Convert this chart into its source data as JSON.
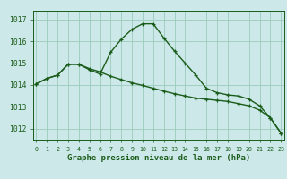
{
  "title": "Graphe pression niveau de la mer (hPa)",
  "bg_color": "#cce8e8",
  "grid_color": "#99ccbb",
  "line_color": "#1a5c1a",
  "xlim": [
    -0.3,
    23.3
  ],
  "ylim": [
    1011.5,
    1017.4
  ],
  "yticks": [
    1012,
    1013,
    1014,
    1015,
    1016,
    1017
  ],
  "xticks": [
    0,
    1,
    2,
    3,
    4,
    5,
    6,
    7,
    8,
    9,
    10,
    11,
    12,
    13,
    14,
    15,
    16,
    17,
    18,
    19,
    20,
    21,
    22,
    23
  ],
  "series1_x": [
    0,
    1,
    2,
    3,
    4,
    5,
    6,
    7,
    8,
    9,
    10,
    11,
    12,
    13,
    14,
    15,
    16,
    17,
    18,
    19,
    20,
    21,
    22,
    23
  ],
  "series1_y": [
    1014.05,
    1014.3,
    1014.45,
    1014.95,
    1014.95,
    1014.7,
    1014.5,
    1015.5,
    1016.1,
    1016.55,
    1016.8,
    1016.8,
    1016.15,
    1015.55,
    1015.0,
    1014.45,
    1013.85,
    1013.65,
    1013.55,
    1013.5,
    1013.35,
    1013.05,
    1012.5,
    1011.8
  ],
  "series2_x": [
    0,
    1,
    2,
    3,
    4,
    5,
    6,
    7,
    8,
    9,
    10,
    11,
    12,
    13,
    14,
    15,
    16,
    17,
    18,
    19,
    20,
    21,
    22,
    23
  ],
  "series2_y": [
    1014.05,
    1014.3,
    1014.45,
    1014.95,
    1014.95,
    1014.75,
    1014.6,
    1014.4,
    1014.25,
    1014.1,
    1013.98,
    1013.85,
    1013.72,
    1013.6,
    1013.5,
    1013.4,
    1013.35,
    1013.3,
    1013.25,
    1013.15,
    1013.05,
    1012.85,
    1012.5,
    1011.8
  ],
  "xlabel_fontsize": 6.5,
  "ytick_fontsize": 5.8,
  "xtick_fontsize": 4.8
}
